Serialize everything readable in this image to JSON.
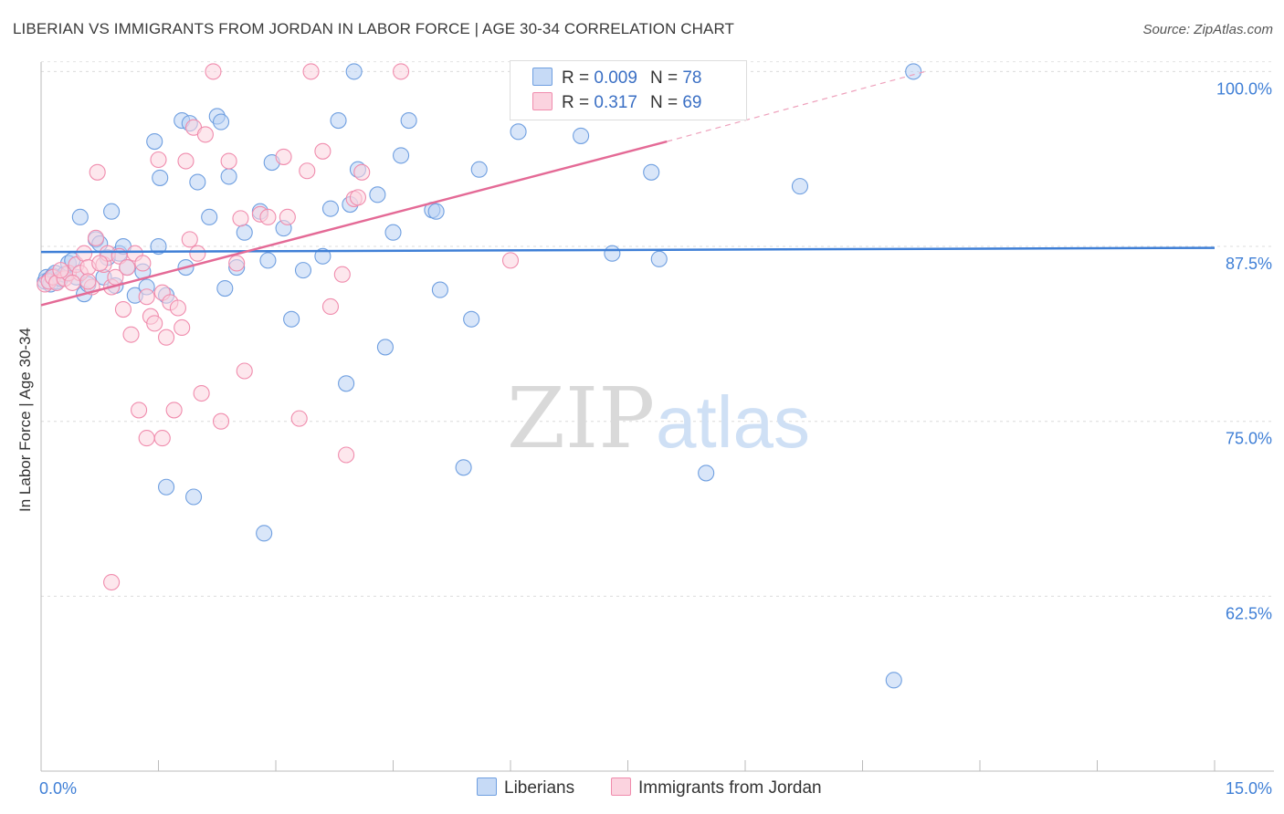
{
  "title": "LIBERIAN VS IMMIGRANTS FROM JORDAN IN LABOR FORCE | AGE 30-34 CORRELATION CHART",
  "source": "Source: ZipAtlas.com",
  "watermark": {
    "zip": "ZIP",
    "atlas": "atlas"
  },
  "legend": {
    "r_label": "R =",
    "n_label": "N =",
    "rows": [
      {
        "r": "0.009",
        "n": "78",
        "color": "#a9c8f0"
      },
      {
        "r": "0.317",
        "n": "69",
        "color": "#f7b8cc"
      }
    ]
  },
  "chart_data": {
    "type": "scatter",
    "title": "LIBERIAN VS IMMIGRANTS FROM JORDAN IN LABOR FORCE | AGE 30-34 CORRELATION CHART",
    "xlabel": "",
    "ylabel": "In Labor Force | Age 30-34",
    "xlim": [
      0,
      15
    ],
    "ylim": [
      50,
      101.2
    ],
    "x_tick_labels": [
      "0.0%",
      "15.0%"
    ],
    "y_ticks": [
      62.5,
      75.0,
      87.5,
      100.0
    ],
    "y_tick_labels": [
      "62.5%",
      "75.0%",
      "87.5%",
      "100.0%"
    ],
    "grid": true,
    "legend_position": "top-center",
    "series": [
      {
        "name": "Liberians",
        "color": "#6f9fe0",
        "fill": "#b9d2f4",
        "trend": {
          "x": [
            0,
            15
          ],
          "y": [
            87.1,
            87.4
          ]
        },
        "points": [
          [
            0.05,
            85.0
          ],
          [
            0.07,
            85.3
          ],
          [
            0.1,
            85.1
          ],
          [
            0.12,
            84.8
          ],
          [
            0.15,
            85.4
          ],
          [
            0.18,
            85.6
          ],
          [
            0.2,
            85.0
          ],
          [
            0.25,
            85.2
          ],
          [
            0.3,
            85.5
          ],
          [
            0.35,
            86.3
          ],
          [
            0.4,
            86.5
          ],
          [
            0.45,
            85.3
          ],
          [
            0.5,
            89.6
          ],
          [
            0.55,
            84.1
          ],
          [
            0.6,
            84.8
          ],
          [
            0.7,
            88.0
          ],
          [
            0.75,
            87.7
          ],
          [
            0.8,
            85.3
          ],
          [
            0.85,
            86.7
          ],
          [
            0.9,
            90.0
          ],
          [
            0.95,
            84.7
          ],
          [
            1.0,
            87.0
          ],
          [
            1.05,
            87.5
          ],
          [
            1.1,
            86.0
          ],
          [
            1.2,
            84.0
          ],
          [
            1.3,
            85.7
          ],
          [
            1.35,
            84.6
          ],
          [
            1.45,
            95.0
          ],
          [
            1.5,
            87.5
          ],
          [
            1.52,
            92.4
          ],
          [
            1.6,
            84.0
          ],
          [
            1.8,
            96.5
          ],
          [
            1.85,
            86.0
          ],
          [
            1.9,
            96.3
          ],
          [
            2.0,
            92.1
          ],
          [
            2.15,
            89.6
          ],
          [
            2.25,
            96.8
          ],
          [
            2.3,
            96.4
          ],
          [
            2.35,
            84.5
          ],
          [
            2.4,
            92.5
          ],
          [
            2.5,
            86.0
          ],
          [
            2.6,
            88.5
          ],
          [
            2.8,
            90.0
          ],
          [
            2.9,
            86.5
          ],
          [
            2.95,
            93.5
          ],
          [
            3.1,
            88.8
          ],
          [
            3.2,
            82.3
          ],
          [
            3.35,
            85.8
          ],
          [
            3.6,
            86.8
          ],
          [
            3.7,
            90.2
          ],
          [
            3.8,
            96.5
          ],
          [
            3.9,
            77.7
          ],
          [
            3.95,
            90.5
          ],
          [
            4.0,
            100.0
          ],
          [
            4.05,
            93.0
          ],
          [
            4.3,
            91.2
          ],
          [
            4.4,
            80.3
          ],
          [
            4.5,
            88.5
          ],
          [
            4.6,
            94.0
          ],
          [
            4.7,
            96.5
          ],
          [
            5.0,
            90.1
          ],
          [
            5.05,
            90.0
          ],
          [
            5.1,
            84.4
          ],
          [
            5.4,
            71.7
          ],
          [
            5.5,
            82.3
          ],
          [
            5.6,
            93.0
          ],
          [
            6.1,
            95.7
          ],
          [
            6.9,
            95.4
          ],
          [
            7.1,
            100.0
          ],
          [
            7.3,
            87.0
          ],
          [
            7.8,
            92.8
          ],
          [
            7.9,
            86.6
          ],
          [
            8.5,
            71.3
          ],
          [
            1.6,
            70.3
          ],
          [
            1.95,
            69.6
          ],
          [
            2.85,
            67.0
          ],
          [
            9.7,
            91.8
          ],
          [
            10.9,
            56.5
          ],
          [
            11.15,
            100.0
          ]
        ]
      },
      {
        "name": "Immigrants from Jordan",
        "color": "#f08cad",
        "fill": "#fbd3df",
        "trend": {
          "x": [
            0,
            8.0
          ],
          "y": [
            83.3,
            95.0
          ]
        },
        "trend_dashed": {
          "x": [
            8.0,
            11.3
          ],
          "y": [
            95.0,
            100.0
          ]
        },
        "points": [
          [
            0.05,
            84.8
          ],
          [
            0.1,
            85.0
          ],
          [
            0.15,
            85.3
          ],
          [
            0.2,
            84.9
          ],
          [
            0.3,
            85.2
          ],
          [
            0.35,
            85.6
          ],
          [
            0.45,
            86.2
          ],
          [
            0.5,
            85.6
          ],
          [
            0.55,
            87.0
          ],
          [
            0.6,
            86.0
          ],
          [
            0.65,
            84.6
          ],
          [
            0.7,
            88.1
          ],
          [
            0.72,
            92.8
          ],
          [
            0.8,
            86.2
          ],
          [
            0.85,
            87.0
          ],
          [
            0.9,
            84.6
          ],
          [
            0.95,
            85.3
          ],
          [
            1.0,
            86.8
          ],
          [
            1.05,
            83.0
          ],
          [
            1.1,
            86.0
          ],
          [
            1.15,
            81.2
          ],
          [
            1.2,
            87.0
          ],
          [
            1.25,
            75.8
          ],
          [
            1.3,
            86.3
          ],
          [
            1.35,
            83.9
          ],
          [
            1.4,
            82.5
          ],
          [
            1.45,
            82.0
          ],
          [
            1.5,
            93.7
          ],
          [
            1.55,
            84.2
          ],
          [
            1.6,
            81.0
          ],
          [
            1.65,
            83.5
          ],
          [
            1.7,
            75.8
          ],
          [
            1.75,
            83.1
          ],
          [
            1.8,
            81.7
          ],
          [
            1.85,
            93.6
          ],
          [
            1.9,
            88.0
          ],
          [
            1.95,
            96.0
          ],
          [
            2.0,
            87.0
          ],
          [
            2.05,
            77.0
          ],
          [
            2.1,
            95.5
          ],
          [
            2.2,
            100.0
          ],
          [
            2.3,
            75.0
          ],
          [
            2.4,
            93.6
          ],
          [
            2.5,
            86.3
          ],
          [
            2.55,
            89.5
          ],
          [
            2.6,
            78.6
          ],
          [
            2.8,
            89.8
          ],
          [
            2.9,
            89.6
          ],
          [
            3.1,
            93.9
          ],
          [
            3.15,
            89.6
          ],
          [
            3.3,
            75.2
          ],
          [
            3.4,
            92.9
          ],
          [
            3.45,
            100.0
          ],
          [
            3.6,
            94.3
          ],
          [
            3.7,
            83.2
          ],
          [
            3.85,
            85.5
          ],
          [
            3.9,
            72.6
          ],
          [
            4.0,
            90.9
          ],
          [
            4.05,
            91.0
          ],
          [
            4.1,
            92.8
          ],
          [
            4.6,
            100.0
          ],
          [
            6.0,
            86.5
          ],
          [
            0.9,
            63.5
          ],
          [
            1.35,
            73.8
          ],
          [
            1.55,
            73.8
          ],
          [
            0.4,
            84.9
          ],
          [
            0.25,
            85.8
          ],
          [
            0.6,
            85.0
          ],
          [
            0.75,
            86.3
          ]
        ]
      }
    ]
  },
  "bottom_legend": [
    {
      "name": "Liberians",
      "color": "#b9d2f4",
      "border": "#6f9fe0"
    },
    {
      "name": "Immigrants from Jordan",
      "color": "#fbd3df",
      "border": "#f08cad"
    }
  ]
}
